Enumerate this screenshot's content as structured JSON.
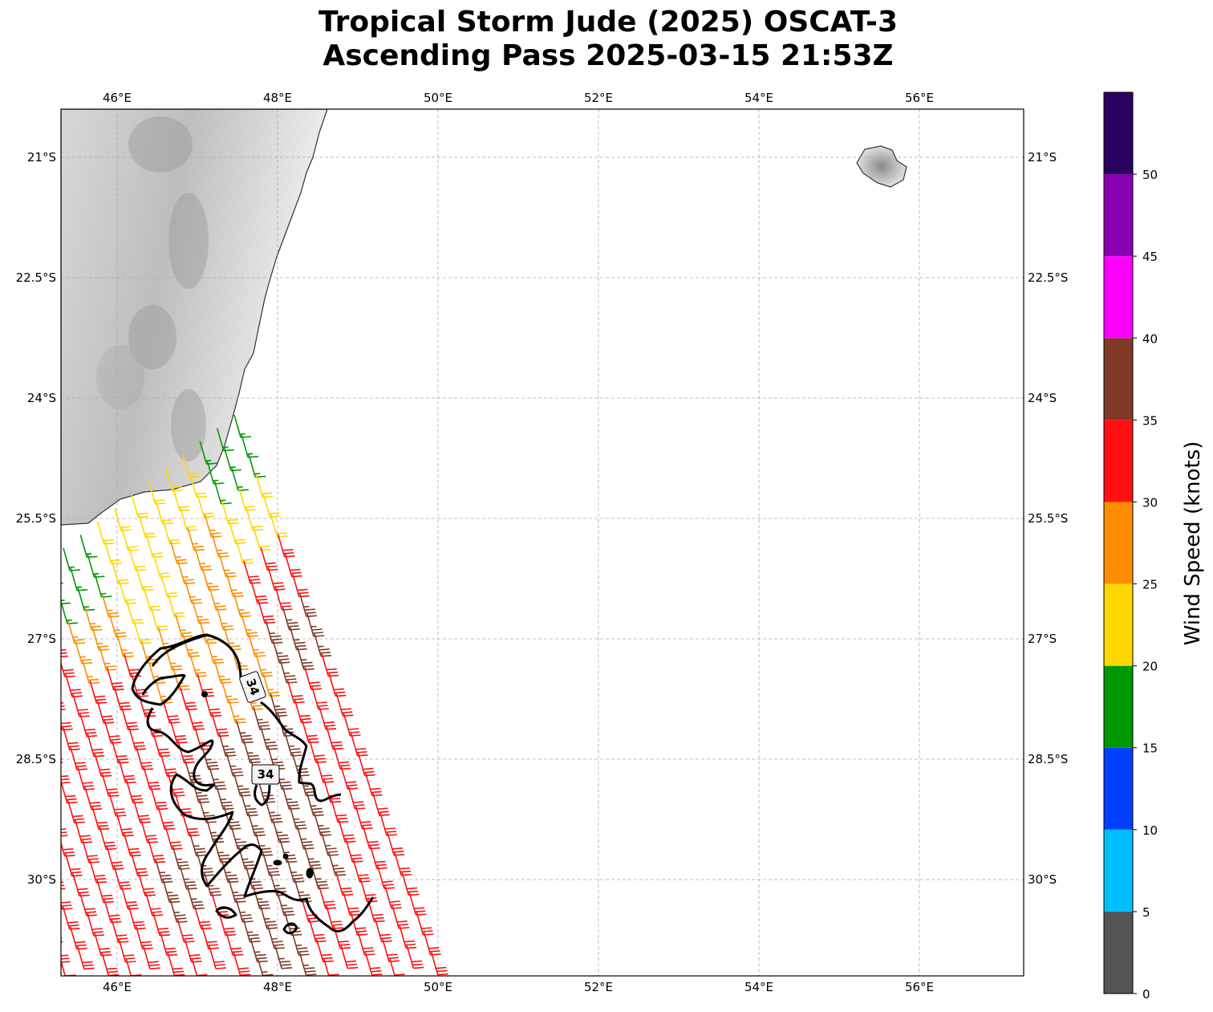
{
  "title": {
    "line1": "Tropical Storm Jude (2025) OSCAT-3",
    "line2": "Ascending Pass 2025-03-15 21:53Z"
  },
  "chart_data": {
    "type": "wind-barb-map",
    "extent": {
      "lon": [
        45.3,
        57.3
      ],
      "lat_south": [
        20.4,
        31.2
      ]
    },
    "lon_ticks": [
      46,
      48,
      50,
      52,
      54,
      56
    ],
    "lon_tick_labels": [
      "46°E",
      "48°E",
      "50°E",
      "52°E",
      "54°E",
      "56°E"
    ],
    "lat_ticks": [
      21,
      22.5,
      24,
      25.5,
      27,
      28.5,
      30
    ],
    "lat_tick_labels": [
      "21°S",
      "22.5°S",
      "24°S",
      "25.5°S",
      "27°S",
      "28.5°S",
      "30°S"
    ],
    "grid": true,
    "colorbar": {
      "label": "Wind Speed (knots)",
      "range": [
        0,
        55
      ],
      "bounds": [
        0,
        5,
        10,
        15,
        20,
        25,
        30,
        35,
        40,
        45,
        50,
        55
      ],
      "colors": [
        "#555555",
        "#00bfff",
        "#0040ff",
        "#009900",
        "#ffd700",
        "#ff8c00",
        "#ff1010",
        "#803a26",
        "#ff00ff",
        "#8800b0",
        "#2a0060"
      ],
      "tick_values": [
        0,
        5,
        10,
        15,
        20,
        25,
        30,
        35,
        40,
        45,
        50
      ],
      "tick_labels": [
        "0",
        "5",
        "10",
        "15",
        "20",
        "25",
        "30",
        "35",
        "40",
        "45",
        "50"
      ]
    },
    "swath_speed_grid_knots": [
      [
        18,
        22,
        22,
        19,
        27,
        27,
        27,
        27
      ],
      [
        24,
        27,
        23,
        27,
        32,
        32,
        27,
        27
      ],
      [
        32,
        28,
        28,
        32,
        32,
        32,
        32,
        27
      ],
      [
        37,
        28,
        32,
        32,
        32,
        32,
        32,
        32
      ],
      [
        32,
        37,
        37,
        32,
        32,
        32,
        32,
        32
      ],
      [
        32,
        37,
        37,
        37,
        32,
        32,
        32,
        27
      ],
      [
        32,
        37,
        37,
        32,
        32,
        32,
        27,
        27
      ],
      [
        32,
        32,
        37,
        32,
        32,
        32,
        27,
        27
      ],
      [
        32,
        32,
        32,
        32,
        32,
        27,
        27,
        27
      ],
      [
        32,
        32,
        32,
        32,
        27,
        27,
        27,
        27
      ]
    ],
    "contour_level_knots": 34,
    "contour_labels": [
      "34",
      "34"
    ]
  }
}
